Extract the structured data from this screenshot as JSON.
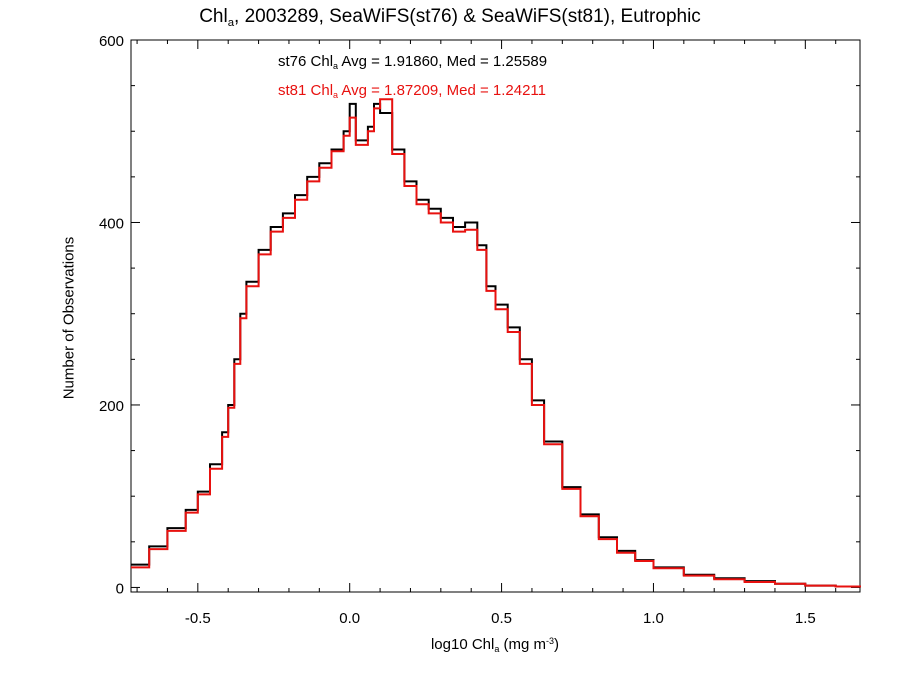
{
  "title": {
    "prefix": "Chl",
    "sub": "a",
    "rest": ", 2003289, SeaWiFS(st76) & SeaWiFS(st81), Eutrophic"
  },
  "stats": {
    "black": {
      "prefix": "st76 Chl",
      "sub": "a",
      "rest": " Avg = 1.91860, Med = 1.25589"
    },
    "red": {
      "prefix": "st81 Chl",
      "sub": "a",
      "rest": " Avg = 1.87209, Med = 1.24211"
    }
  },
  "xlabel": {
    "prefix": "log10 Chl",
    "sub": "a",
    "mid": " (mg m",
    "sup": "-3",
    "end": ")"
  },
  "ylabel": "Number of Observations",
  "colors": {
    "st76": "#000000",
    "st81": "#e8110f",
    "axis": "#000000"
  },
  "chart_data": {
    "type": "line",
    "style": "step histogram",
    "xlim": [
      -0.72,
      1.68
    ],
    "ylim": [
      -5,
      600
    ],
    "x_ticks": [
      -0.5,
      0.0,
      0.5,
      1.0,
      1.5
    ],
    "x_tick_labels": [
      "-0.5",
      "0.0",
      "0.5",
      "1.0",
      "1.5"
    ],
    "y_ticks": [
      0,
      200,
      400,
      600
    ],
    "y_tick_labels": [
      "0",
      "200",
      "400",
      "600"
    ],
    "grid": false,
    "x": [
      -0.72,
      -0.66,
      -0.6,
      -0.54,
      -0.5,
      -0.46,
      -0.42,
      -0.4,
      -0.38,
      -0.36,
      -0.34,
      -0.3,
      -0.26,
      -0.22,
      -0.18,
      -0.14,
      -0.1,
      -0.06,
      -0.02,
      0.0,
      0.02,
      0.06,
      0.08,
      0.1,
      0.14,
      0.18,
      0.22,
      0.26,
      0.3,
      0.34,
      0.38,
      0.42,
      0.45,
      0.48,
      0.52,
      0.56,
      0.6,
      0.64,
      0.7,
      0.76,
      0.82,
      0.88,
      0.94,
      1.0,
      1.1,
      1.2,
      1.3,
      1.4,
      1.5,
      1.6,
      1.68
    ],
    "series": [
      {
        "name": "st76",
        "values": [
          25,
          45,
          65,
          85,
          105,
          135,
          170,
          200,
          250,
          300,
          335,
          370,
          395,
          410,
          430,
          450,
          465,
          480,
          500,
          530,
          490,
          505,
          530,
          520,
          480,
          445,
          425,
          415,
          405,
          395,
          400,
          375,
          330,
          310,
          285,
          250,
          205,
          160,
          110,
          80,
          55,
          40,
          30,
          22,
          14,
          10,
          7,
          4,
          2,
          1,
          0
        ]
      },
      {
        "name": "st81",
        "values": [
          22,
          42,
          62,
          82,
          102,
          130,
          165,
          197,
          245,
          295,
          330,
          365,
          390,
          405,
          425,
          445,
          460,
          478,
          495,
          515,
          485,
          500,
          525,
          535,
          475,
          440,
          420,
          410,
          400,
          390,
          392,
          370,
          325,
          305,
          280,
          245,
          200,
          157,
          108,
          78,
          53,
          38,
          29,
          21,
          13,
          9,
          6,
          4,
          2,
          1,
          0
        ]
      }
    ]
  }
}
